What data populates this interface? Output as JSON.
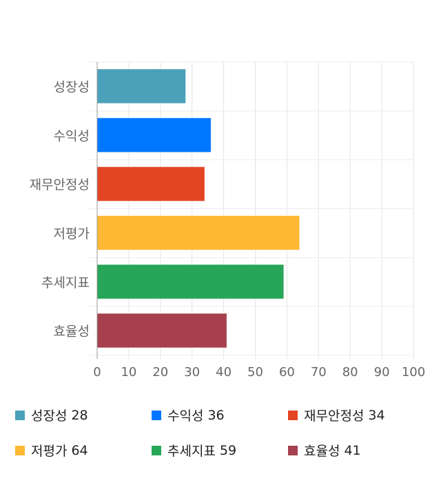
{
  "chart_data": {
    "type": "bar",
    "orientation": "horizontal",
    "categories": [
      "성장성",
      "수익성",
      "재무안정성",
      "저평가",
      "추세지표",
      "효율성"
    ],
    "values": [
      28,
      36,
      34,
      64,
      59,
      41
    ],
    "colors": [
      "#4aa1b9",
      "#0077ff",
      "#e34423",
      "#ffb833",
      "#28a658",
      "#a6404f"
    ],
    "xlim": [
      0,
      100
    ],
    "xticks": [
      "0",
      "10",
      "20",
      "30",
      "40",
      "50",
      "60",
      "70",
      "80",
      "90",
      "100"
    ],
    "grid": true,
    "legend_position": "bottom",
    "legend": [
      {
        "label": "성장성",
        "value": "28"
      },
      {
        "label": "수익성",
        "value": "36"
      },
      {
        "label": "재무안정성",
        "value": "34"
      },
      {
        "label": "저평가",
        "value": "64"
      },
      {
        "label": "추세지표",
        "value": "59"
      },
      {
        "label": "효율성",
        "value": "41"
      }
    ]
  }
}
